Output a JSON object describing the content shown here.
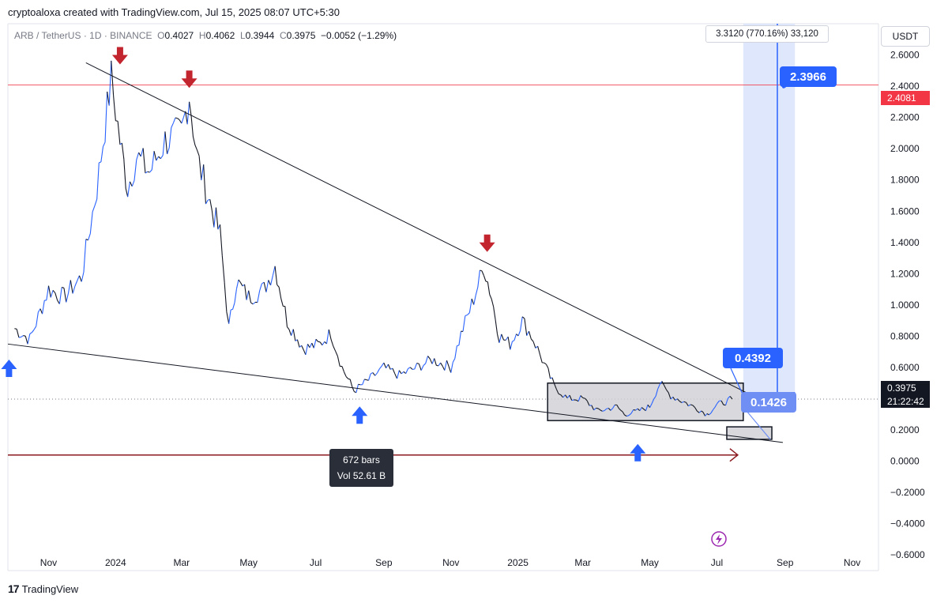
{
  "header": {
    "text": "cryptoaloxa created with TradingView.com, Jul 15, 2025 08:07 UTC+5:30"
  },
  "legend": {
    "symbol": "ARB / TetherUS · 1D · BINANCE",
    "o_label": "O",
    "o_value": "0.4027",
    "h_label": "H",
    "h_value": "0.4062",
    "l_label": "L",
    "l_value": "0.3944",
    "c_label": "C",
    "c_value": "0.3975",
    "change": "−0.0052 (−1.29%)"
  },
  "currency_button": "USDT",
  "price_axis": {
    "resistance_label": "2.4081",
    "current_price": "0.3975",
    "countdown": "21:22:42"
  },
  "measure_tooltip": "3.3120 (770.16%) 33,120",
  "bars_tooltip": {
    "bars": "672 bars",
    "vol": "Vol 52.61 B"
  },
  "callouts": {
    "target": "2.3966",
    "box_top": "0.4392",
    "box_bottom": "0.1426"
  },
  "footer": {
    "logo": "17",
    "brand": "TradingView"
  },
  "colors": {
    "up": "#2962ff",
    "down": "#131722",
    "resistance": "#f23645",
    "arrow_down": "#c2252e",
    "arrow_up": "#2962ff",
    "projection_fill": "#dbe4fc",
    "callout_bg": "#2962ff",
    "range_box": "#cfd0d4"
  },
  "chart_data": {
    "type": "line",
    "series": [
      {
        "x": [
          "2023-10-01",
          "2023-10-15",
          "2023-11-01",
          "2023-11-15",
          "2023-12-01",
          "2023-12-15",
          "2023-12-28",
          "2024-01-05",
          "2024-01-12",
          "2024-01-20",
          "2024-02-01",
          "2024-02-15",
          "2024-03-01",
          "2024-03-08",
          "2024-03-15",
          "2024-03-25",
          "2024-04-05",
          "2024-04-13",
          "2024-04-20",
          "2024-05-01",
          "2024-05-15",
          "2024-05-25",
          "2024-06-05",
          "2024-06-20",
          "2024-07-05",
          "2024-07-15",
          "2024-07-25",
          "2024-08-05",
          "2024-08-20",
          "2024-09-01",
          "2024-09-15",
          "2024-10-01",
          "2024-10-15",
          "2024-11-01",
          "2024-11-12",
          "2024-11-20",
          "2024-12-01",
          "2024-12-08",
          "2024-12-15",
          "2024-12-25",
          "2025-01-05",
          "2025-01-15",
          "2025-01-25",
          "2025-02-03",
          "2025-02-15",
          "2025-03-01",
          "2025-03-15",
          "2025-04-01",
          "2025-04-08",
          "2025-04-20",
          "2025-05-01",
          "2025-05-10",
          "2025-05-20",
          "2025-06-01",
          "2025-06-15",
          "2025-06-22",
          "2025-07-01",
          "2025-07-15"
        ],
        "y": [
          0.85,
          0.78,
          1.1,
          1.05,
          1.18,
          1.75,
          2.45,
          2.05,
          1.75,
          1.95,
          1.85,
          2.05,
          2.1,
          2.35,
          1.95,
          1.7,
          1.45,
          0.85,
          1.15,
          1.05,
          1.1,
          1.25,
          0.9,
          0.72,
          0.75,
          0.82,
          0.6,
          0.45,
          0.53,
          0.6,
          0.55,
          0.6,
          0.65,
          0.6,
          0.85,
          1.0,
          1.25,
          1.05,
          0.8,
          0.75,
          0.9,
          0.78,
          0.62,
          0.48,
          0.4,
          0.4,
          0.32,
          0.35,
          0.3,
          0.32,
          0.35,
          0.5,
          0.42,
          0.38,
          0.33,
          0.3,
          0.36,
          0.3975
        ]
      }
    ],
    "xlabel": "",
    "ylabel": "",
    "ylim": [
      -0.7,
      2.8
    ],
    "xlim": [
      "2023-09-25",
      "2025-11-25"
    ],
    "x_ticks": [
      "Nov",
      "2024",
      "Mar",
      "May",
      "Jul",
      "Sep",
      "Nov",
      "2025",
      "Mar",
      "May",
      "Jul",
      "Sep",
      "Nov"
    ],
    "y_ticks": [
      "2.6000",
      "2.4000",
      "2.2000",
      "2.0000",
      "1.8000",
      "1.6000",
      "1.4000",
      "1.2000",
      "1.0000",
      "0.8000",
      "0.6000",
      "0.4000",
      "0.2000",
      "0.0000",
      "−0.2000",
      "−0.4000",
      "−0.6000"
    ],
    "resistance_level": 2.4081,
    "current_price": 0.3975,
    "range_box": {
      "x": [
        "2025-01-28",
        "2025-07-25"
      ],
      "y": [
        0.26,
        0.5
      ]
    },
    "support_box": {
      "x": [
        "2025-07-10",
        "2025-08-20"
      ],
      "y": [
        0.14,
        0.22
      ]
    },
    "projection_zone": {
      "x": [
        "2025-07-25",
        "2025-09-10"
      ],
      "y": [
        0.4392,
        2.8
      ]
    },
    "target_line": {
      "x": "2025-08-25",
      "y": [
        0.4392,
        2.3966
      ]
    },
    "downtrend_line": {
      "x": [
        "2023-12-05",
        "2025-08-25"
      ],
      "y": [
        2.55,
        0.34
      ]
    },
    "support_line": {
      "x": [
        "2023-09-25",
        "2025-08-30"
      ],
      "y": [
        0.75,
        0.12
      ]
    },
    "range_arrow": {
      "x": [
        "2023-09-25",
        "2025-07-20"
      ],
      "y": [
        0.04,
        0.04
      ]
    },
    "down_arrows": [
      {
        "x": "2024-01-05",
        "y": 2.6
      },
      {
        "x": "2024-03-08",
        "y": 2.45
      },
      {
        "x": "2024-12-04",
        "y": 1.4
      }
    ],
    "up_arrows": [
      {
        "x": "2024-08-10",
        "y": 0.3
      },
      {
        "x": "2025-04-20",
        "y": 0.06
      },
      {
        "x": "2023-09-26",
        "y": 0.6
      }
    ],
    "grid": false,
    "legend": "none"
  }
}
